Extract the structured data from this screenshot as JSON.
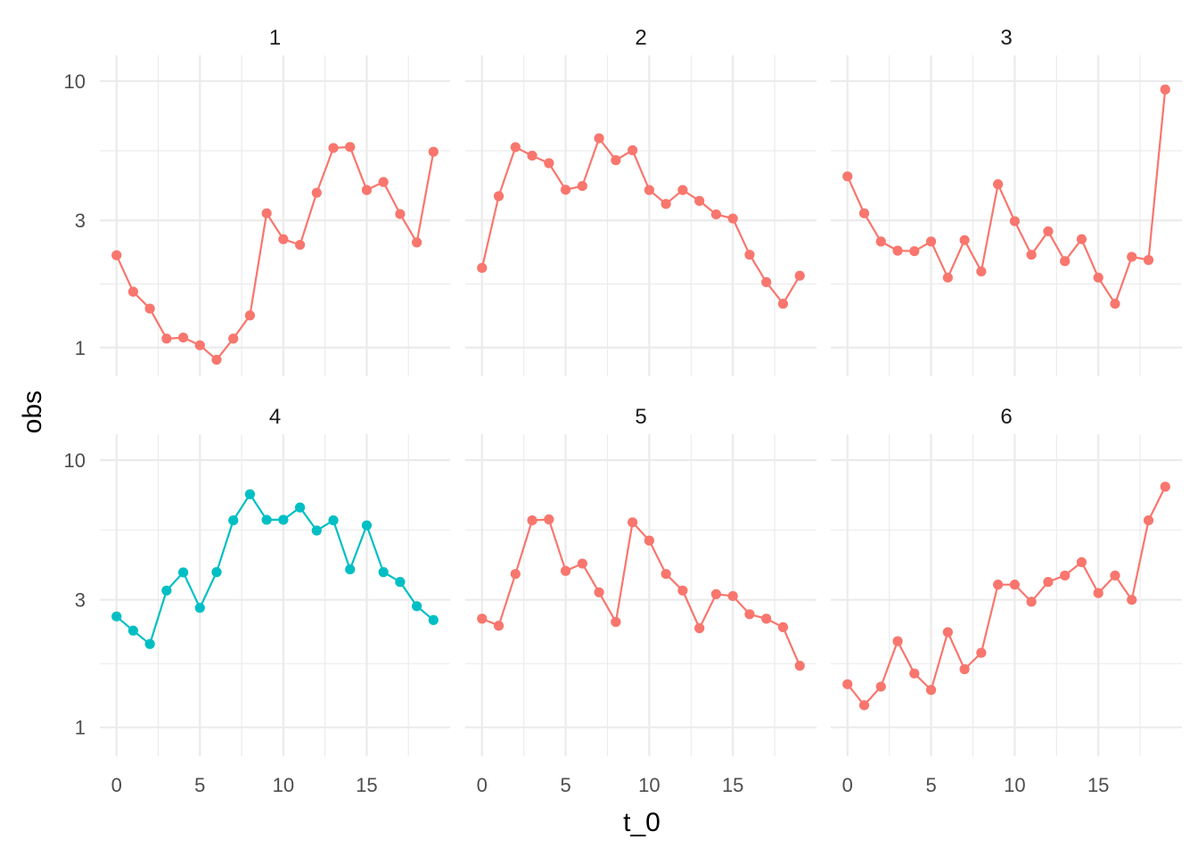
{
  "chart_data": {
    "type": "line",
    "xlabel": "t_0",
    "ylabel": "obs",
    "y_scale": "log10",
    "ylim": [
      0.78,
      12.5
    ],
    "xlim": [
      -1,
      20
    ],
    "y_ticks": [
      1,
      3,
      10
    ],
    "x_ticks": [
      0,
      5,
      10,
      15
    ],
    "grid": true,
    "legend": "none",
    "markers": "points",
    "panels": [
      {
        "label": "1",
        "color": "#F8766D",
        "x": [
          0,
          1,
          2,
          3,
          4,
          5,
          6,
          7,
          8,
          9,
          10,
          11,
          12,
          13,
          14,
          15,
          16,
          17,
          18,
          19
        ],
        "values": [
          2.22,
          1.62,
          1.4,
          1.08,
          1.09,
          1.02,
          0.9,
          1.08,
          1.32,
          3.19,
          2.55,
          2.43,
          3.81,
          5.61,
          5.66,
          3.9,
          4.18,
          3.17,
          2.48,
          5.43
        ]
      },
      {
        "label": "2",
        "color": "#F8766D",
        "x": [
          0,
          1,
          2,
          3,
          4,
          5,
          6,
          7,
          8,
          9,
          10,
          11,
          12,
          13,
          14,
          15,
          16,
          17,
          18,
          19
        ],
        "values": [
          1.99,
          3.7,
          5.65,
          5.25,
          4.92,
          3.91,
          4.04,
          6.1,
          5.05,
          5.5,
          3.9,
          3.46,
          3.9,
          3.55,
          3.16,
          3.05,
          2.23,
          1.76,
          1.46,
          1.86
        ]
      },
      {
        "label": "3",
        "color": "#F8766D",
        "x": [
          0,
          1,
          2,
          3,
          4,
          5,
          6,
          7,
          8,
          9,
          10,
          11,
          12,
          13,
          14,
          15,
          16,
          17,
          18,
          19
        ],
        "values": [
          4.39,
          3.19,
          2.5,
          2.31,
          2.3,
          2.5,
          1.83,
          2.53,
          1.93,
          4.1,
          2.98,
          2.23,
          2.73,
          2.11,
          2.55,
          1.83,
          1.46,
          2.19,
          2.13,
          9.3
        ]
      },
      {
        "label": "4",
        "color": "#00BFC4",
        "x": [
          0,
          1,
          2,
          3,
          4,
          5,
          6,
          7,
          8,
          9,
          10,
          11,
          12,
          13,
          14,
          15,
          16,
          17,
          18,
          19
        ],
        "values": [
          2.6,
          2.3,
          2.05,
          3.25,
          3.8,
          2.8,
          3.81,
          5.95,
          7.45,
          5.98,
          5.98,
          6.65,
          5.45,
          5.95,
          3.9,
          5.7,
          3.81,
          3.5,
          2.84,
          2.52
        ]
      },
      {
        "label": "5",
        "color": "#F8766D",
        "x": [
          0,
          1,
          2,
          3,
          4,
          5,
          6,
          7,
          8,
          9,
          10,
          11,
          12,
          13,
          14,
          15,
          16,
          17,
          18,
          19
        ],
        "values": [
          2.55,
          2.4,
          3.75,
          5.95,
          6.0,
          3.85,
          4.1,
          3.2,
          2.48,
          5.85,
          5.0,
          3.75,
          3.25,
          2.35,
          3.15,
          3.1,
          2.65,
          2.55,
          2.37,
          1.7
        ]
      },
      {
        "label": "6",
        "color": "#F8766D",
        "x": [
          0,
          1,
          2,
          3,
          4,
          5,
          6,
          7,
          8,
          9,
          10,
          11,
          12,
          13,
          14,
          15,
          16,
          17,
          18,
          19
        ],
        "values": [
          1.45,
          1.21,
          1.42,
          2.1,
          1.59,
          1.38,
          2.27,
          1.65,
          1.9,
          3.42,
          3.42,
          2.95,
          3.5,
          3.7,
          4.15,
          3.18,
          3.7,
          3.0,
          5.95,
          7.95
        ]
      }
    ]
  }
}
